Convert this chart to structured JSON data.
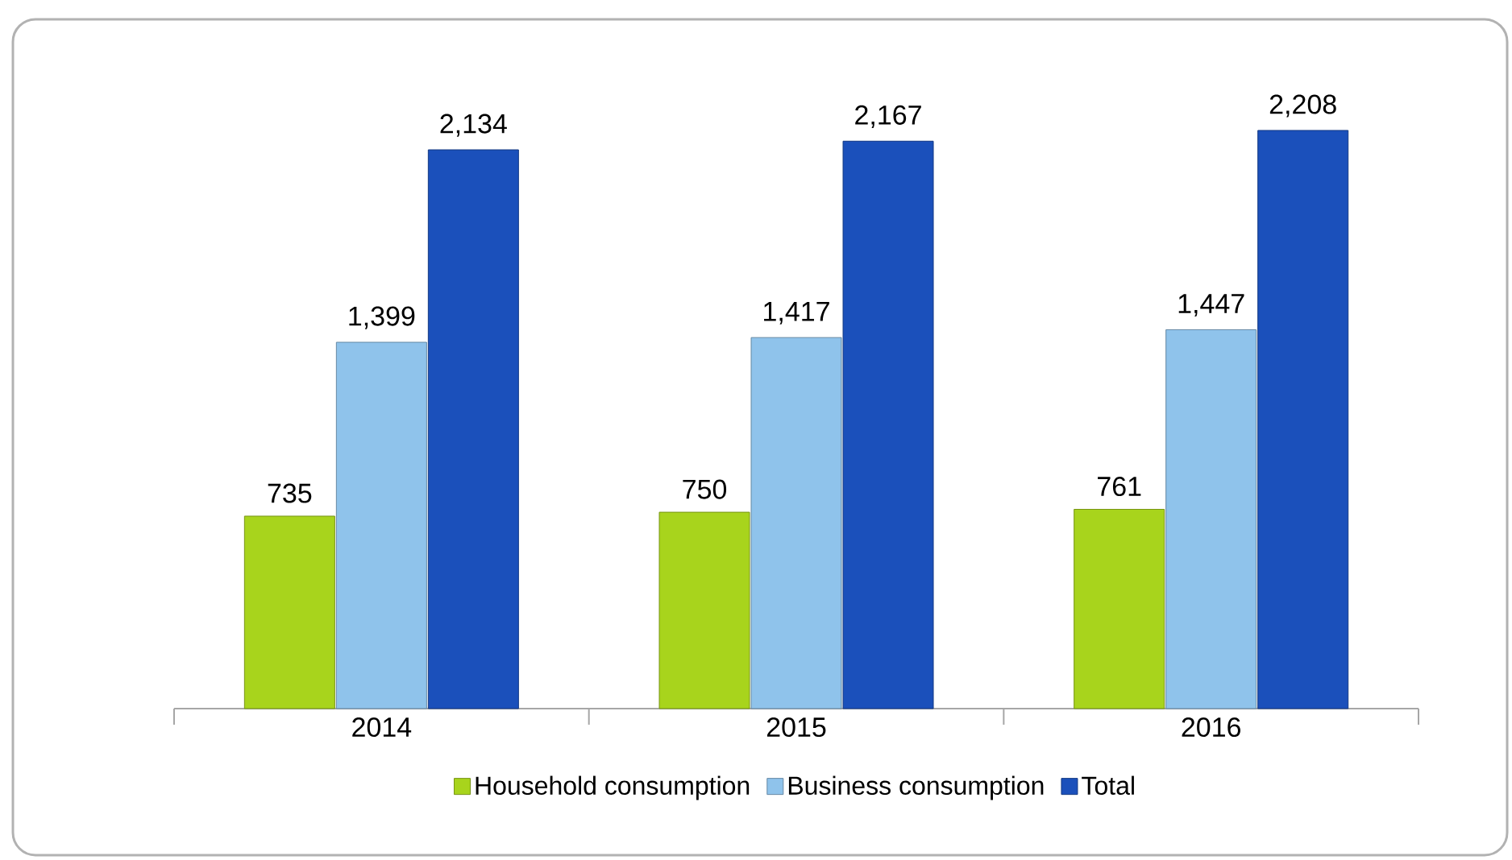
{
  "chart_data": {
    "type": "bar",
    "categories": [
      "2014",
      "2015",
      "2016"
    ],
    "legend": "bottom",
    "series": [
      {
        "name": "Household consumption",
        "color": "#a8d41c",
        "values": [
          735,
          750,
          761
        ],
        "value_labels": [
          "735",
          "750",
          "761"
        ]
      },
      {
        "name": "Business consumption",
        "color": "#8fc3eb",
        "values": [
          1399,
          1417,
          1447
        ],
        "value_labels": [
          "1,399",
          "1,417",
          "1,447"
        ]
      },
      {
        "name": "Total",
        "color": "#1b50bb",
        "values": [
          2134,
          2167,
          2208
        ],
        "value_labels": [
          "2,134",
          "2,167",
          "2,208"
        ]
      }
    ]
  }
}
